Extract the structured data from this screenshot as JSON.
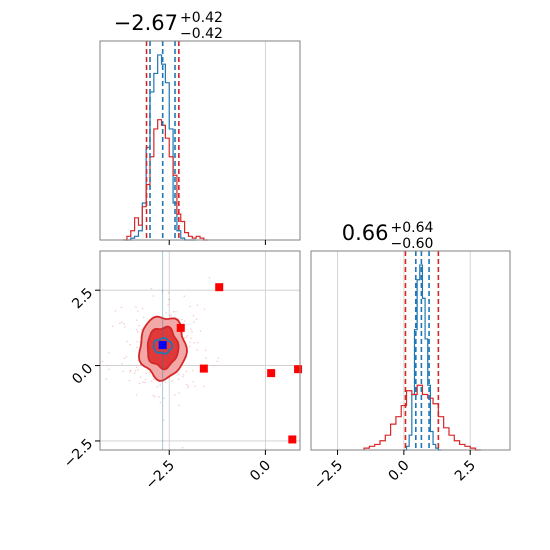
{
  "chart_data": [
    {
      "panel": "top-left-histogram",
      "type": "histogram",
      "title": {
        "value": "−2.67",
        "plus": "+0.42",
        "minus": "−0.42"
      },
      "xlim": [
        -4.3,
        0.9
      ],
      "grid": true,
      "series": [
        {
          "color": "#1f77b4",
          "bins_x": [
            -3.6,
            -3.5,
            -3.4,
            -3.3,
            -3.2,
            -3.1,
            -3.0,
            -2.9,
            -2.8,
            -2.7,
            -2.6,
            -2.5,
            -2.4,
            -2.3,
            -2.2,
            -2.1,
            -2.0,
            -1.9
          ],
          "heights": [
            0.0,
            0.01,
            0.02,
            0.05,
            0.2,
            0.5,
            0.8,
            0.9,
            1.0,
            0.95,
            0.85,
            0.6,
            0.2,
            0.05,
            0.01,
            0.0,
            0.0,
            0.0
          ]
        },
        {
          "color": "#d62728",
          "bins_x": [
            -3.7,
            -3.6,
            -3.5,
            -3.4,
            -3.3,
            -3.2,
            -3.1,
            -3.0,
            -2.9,
            -2.8,
            -2.7,
            -2.6,
            -2.5,
            -2.4,
            -2.3,
            -2.2,
            -2.1,
            -2.0,
            -1.9,
            -1.8,
            -1.7,
            -1.6
          ],
          "heights": [
            0.0,
            0.02,
            0.05,
            0.12,
            0.08,
            0.18,
            0.3,
            0.45,
            0.6,
            0.65,
            0.62,
            0.55,
            0.45,
            0.35,
            0.14,
            0.1,
            0.04,
            0.02,
            0.01,
            0.02,
            0.01,
            0.0
          ]
        }
      ],
      "vlines": [
        {
          "x": -3.09,
          "color": "#d62728"
        },
        {
          "x": -2.25,
          "color": "#d62728"
        },
        {
          "x": -3.0,
          "color": "#1f77b4"
        },
        {
          "x": -2.67,
          "color": "#1f77b4"
        },
        {
          "x": -2.35,
          "color": "#1f77b4"
        }
      ]
    },
    {
      "panel": "bottom-left-2d",
      "type": "contour-scatter",
      "xlim": [
        -4.3,
        0.9
      ],
      "ylim": [
        -2.8,
        3.8
      ],
      "xticks": [
        -2.5,
        0.0
      ],
      "yticks": [
        -2.5,
        0.0,
        2.5
      ],
      "xtick_labels": [
        "−2.5",
        "0.0"
      ],
      "ytick_labels": [
        "−2.5",
        "0.0",
        "2.5"
      ],
      "grid": true,
      "contours": [
        {
          "color": "#d62728",
          "fill": "#f2a3a3",
          "cx": -2.67,
          "cy": 0.6,
          "rx": 1.5,
          "ry": 2.3
        },
        {
          "color": "#d62728",
          "fill": "#dd3333",
          "cx": -2.67,
          "cy": 0.6,
          "rx": 1.0,
          "ry": 1.5
        },
        {
          "color": "#1f77b4",
          "fill": "none",
          "cx": -2.67,
          "cy": 0.65,
          "rx": 0.6,
          "ry": 0.55
        }
      ],
      "markers_red": [
        {
          "x": -1.2,
          "y": 2.6
        },
        {
          "x": -2.2,
          "y": 1.25
        },
        {
          "x": -1.6,
          "y": -0.1
        },
        {
          "x": 0.15,
          "y": -0.25
        },
        {
          "x": 0.85,
          "y": -0.12
        },
        {
          "x": 0.7,
          "y": -2.45
        }
      ],
      "marker_blue": {
        "x": -2.67,
        "y": 0.68
      },
      "truth_lines": {
        "x": -2.67,
        "y": 0.66,
        "color": "#1f77b4"
      }
    },
    {
      "panel": "bottom-right-histogram",
      "type": "histogram",
      "title": {
        "value": "0.66",
        "plus": "+0.64",
        "minus": "−0.60"
      },
      "xlim": [
        -3.5,
        4.0
      ],
      "xticks": [
        -2.5,
        0.0,
        2.5
      ],
      "xtick_labels": [
        "−2.5",
        "0.0",
        "2.5"
      ],
      "grid": true,
      "series": [
        {
          "color": "#1f77b4",
          "bins_x": [
            0.0,
            0.1,
            0.2,
            0.3,
            0.4,
            0.5,
            0.6,
            0.7,
            0.8,
            0.9,
            1.0,
            1.1,
            1.2,
            1.3
          ],
          "heights": [
            0.0,
            0.02,
            0.08,
            0.3,
            0.65,
            0.92,
            1.0,
            0.82,
            0.6,
            0.35,
            0.1,
            0.03,
            0.01,
            0.0
          ]
        },
        {
          "color": "#d62728",
          "bins_x": [
            -1.5,
            -1.3,
            -1.1,
            -0.9,
            -0.7,
            -0.5,
            -0.3,
            -0.1,
            0.1,
            0.3,
            0.5,
            0.7,
            0.9,
            1.1,
            1.3,
            1.5,
            1.7,
            1.9,
            2.1,
            2.3,
            2.5,
            2.7
          ],
          "heights": [
            0.01,
            0.02,
            0.03,
            0.05,
            0.08,
            0.14,
            0.18,
            0.24,
            0.32,
            0.3,
            0.35,
            0.3,
            0.28,
            0.25,
            0.18,
            0.12,
            0.08,
            0.05,
            0.03,
            0.02,
            0.01,
            0.0
          ]
        }
      ],
      "vlines": [
        {
          "x": 0.06,
          "color": "#d62728"
        },
        {
          "x": 1.3,
          "color": "#d62728"
        },
        {
          "x": 0.45,
          "color": "#1f77b4"
        },
        {
          "x": 0.66,
          "color": "#1f77b4"
        },
        {
          "x": 0.95,
          "color": "#1f77b4"
        }
      ]
    }
  ]
}
